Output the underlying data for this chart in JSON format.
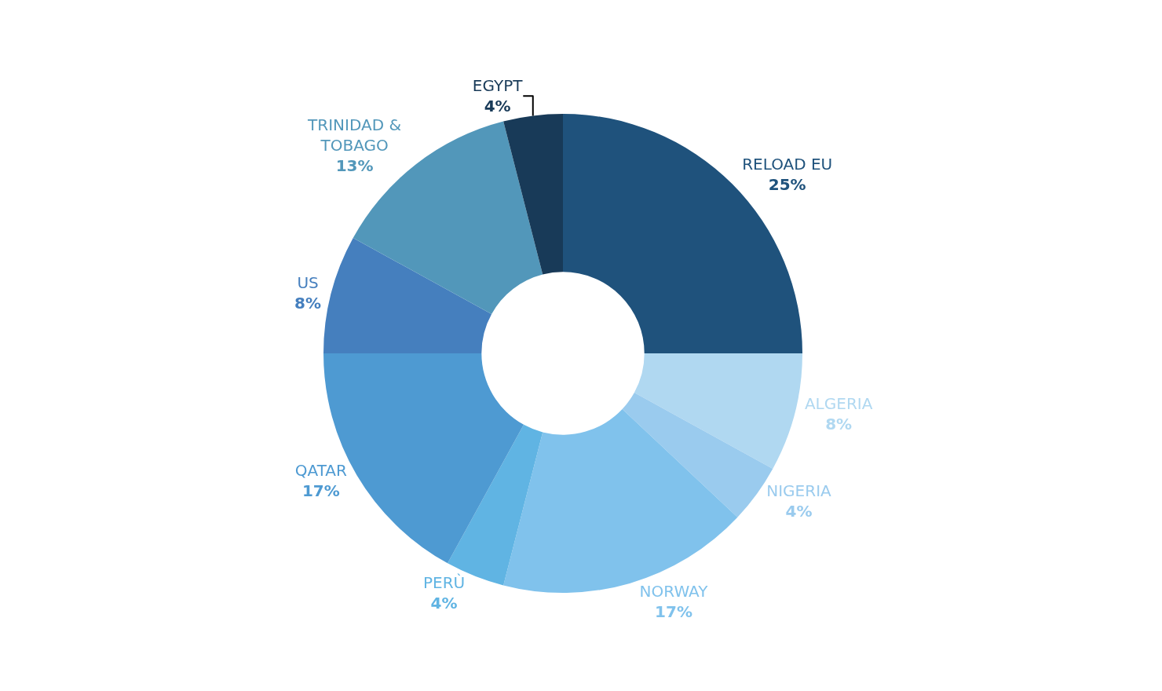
{
  "chart_data": {
    "type": "donut",
    "categories": [
      "RELOAD EU",
      "ALGERIA",
      "NIGERIA",
      "NORWAY",
      "PERÙ",
      "QATAR",
      "US",
      "TRINIDAD & TOBAGO",
      "EGYPT"
    ],
    "values": [
      25,
      8,
      4,
      17,
      4,
      17,
      8,
      13,
      4
    ],
    "value_labels": [
      "25%",
      "8%",
      "4%",
      "17%",
      "4%",
      "17%",
      "8%",
      "13%",
      "4%"
    ],
    "colors": [
      "#1f527c",
      "#b0d8f1",
      "#9acbee",
      "#80c2ec",
      "#60b4e3",
      "#4e9ad2",
      "#457fbe",
      "#5297ba",
      "#183a58"
    ]
  }
}
